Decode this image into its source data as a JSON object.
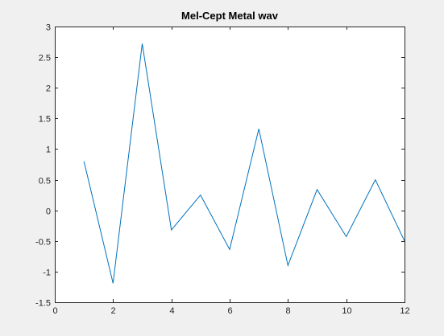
{
  "chart_data": {
    "type": "line",
    "title": "Mel-Cept Metal wav",
    "xlabel": "",
    "ylabel": "",
    "xlim": [
      0,
      12
    ],
    "ylim": [
      -1.5,
      3
    ],
    "xticks": [
      0,
      2,
      4,
      6,
      8,
      10,
      12
    ],
    "yticks": [
      -1.5,
      -1,
      -0.5,
      0,
      0.5,
      1,
      1.5,
      2,
      2.5,
      3
    ],
    "xtick_labels": [
      "0",
      "2",
      "4",
      "6",
      "8",
      "10",
      "12"
    ],
    "ytick_labels": [
      "-1.5",
      "-1",
      "-0.5",
      "0",
      "0.5",
      "1",
      "1.5",
      "2",
      "2.5",
      "3"
    ],
    "grid": false,
    "legend": "none",
    "series": [
      {
        "color": "#0072bd",
        "x": [
          1,
          2,
          3,
          4,
          5,
          6,
          7,
          8,
          9,
          10,
          11,
          12
        ],
        "y": [
          0.8,
          -1.19,
          2.72,
          -0.32,
          0.25,
          -0.64,
          1.33,
          -0.9,
          0.34,
          -0.43,
          0.5,
          -0.5
        ]
      }
    ]
  },
  "colors": {
    "figure_background": "#f0f0f0",
    "axes_background": "#ffffff",
    "axes_line": "#262626",
    "series_line": "#0072bd"
  }
}
